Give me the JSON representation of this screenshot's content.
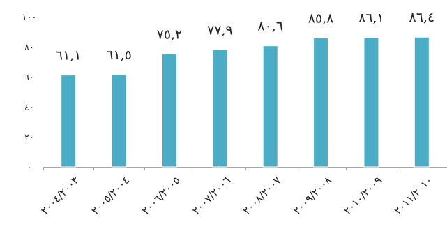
{
  "chart_data": {
    "type": "bar",
    "categories": [
      "٢٠٠٤/٢٠٠٣",
      "٢٠٠٥/٢٠٠٤",
      "٢٠٠٦/٢٠٠٥",
      "٢٠٠٧/٢٠٠٦",
      "٢٠٠٨/٢٠٠٧",
      "٢٠٠٩/٢٠٠٨",
      "٢٠١٠/٢٠٠٩",
      "٢٠١١/٢٠١٠"
    ],
    "values": [
      61.1,
      61.5,
      75.2,
      77.9,
      80.6,
      85.8,
      86.1,
      86.4
    ],
    "data_labels": [
      "٦١,١",
      "٦١,٥",
      "٧٥,٢",
      "٧٧,٩",
      "٨٠,٦",
      "٨٥,٨",
      "٨٦,١",
      "٨٦,٤"
    ],
    "y_ticks": [
      0,
      20,
      40,
      60,
      80,
      100
    ],
    "y_tick_labels": [
      "٠",
      "٢٠",
      "٤٠",
      "٦٠",
      "٨٠",
      "١٠٠"
    ],
    "ylim": [
      0,
      100
    ],
    "grid": false,
    "legend": "none",
    "title": "",
    "xlabel": "",
    "ylabel": "",
    "colors": {
      "bar": "#4BACC6",
      "bar_edge": "#FFFFFF",
      "axis": "#A6A6A6"
    }
  }
}
